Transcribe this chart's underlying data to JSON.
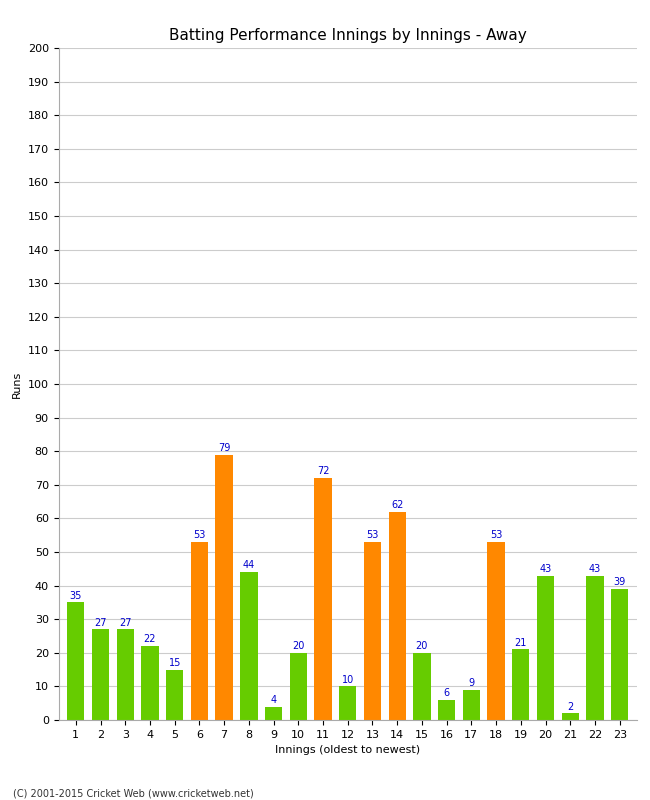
{
  "title": "Batting Performance Innings by Innings - Away",
  "xlabel": "Innings (oldest to newest)",
  "ylabel": "Runs",
  "values": [
    35,
    27,
    27,
    22,
    15,
    53,
    79,
    44,
    4,
    20,
    72,
    10,
    53,
    62,
    20,
    6,
    9,
    53,
    21,
    43,
    2,
    43,
    39
  ],
  "colors": [
    "#66cc00",
    "#66cc00",
    "#66cc00",
    "#66cc00",
    "#66cc00",
    "#ff8800",
    "#ff8800",
    "#66cc00",
    "#66cc00",
    "#66cc00",
    "#ff8800",
    "#66cc00",
    "#ff8800",
    "#ff8800",
    "#66cc00",
    "#66cc00",
    "#66cc00",
    "#ff8800",
    "#66cc00",
    "#66cc00",
    "#66cc00",
    "#66cc00",
    "#66cc00"
  ],
  "label_color": "#0000cc",
  "ylim": [
    0,
    200
  ],
  "yticks": [
    0,
    10,
    20,
    30,
    40,
    50,
    60,
    70,
    80,
    90,
    100,
    110,
    120,
    130,
    140,
    150,
    160,
    170,
    180,
    190,
    200
  ],
  "background_color": "#ffffff",
  "grid_color": "#cccccc",
  "footer": "(C) 2001-2015 Cricket Web (www.cricketweb.net)",
  "title_fontsize": 11,
  "axis_label_fontsize": 8,
  "tick_fontsize": 8,
  "value_label_fontsize": 7,
  "footer_fontsize": 7
}
